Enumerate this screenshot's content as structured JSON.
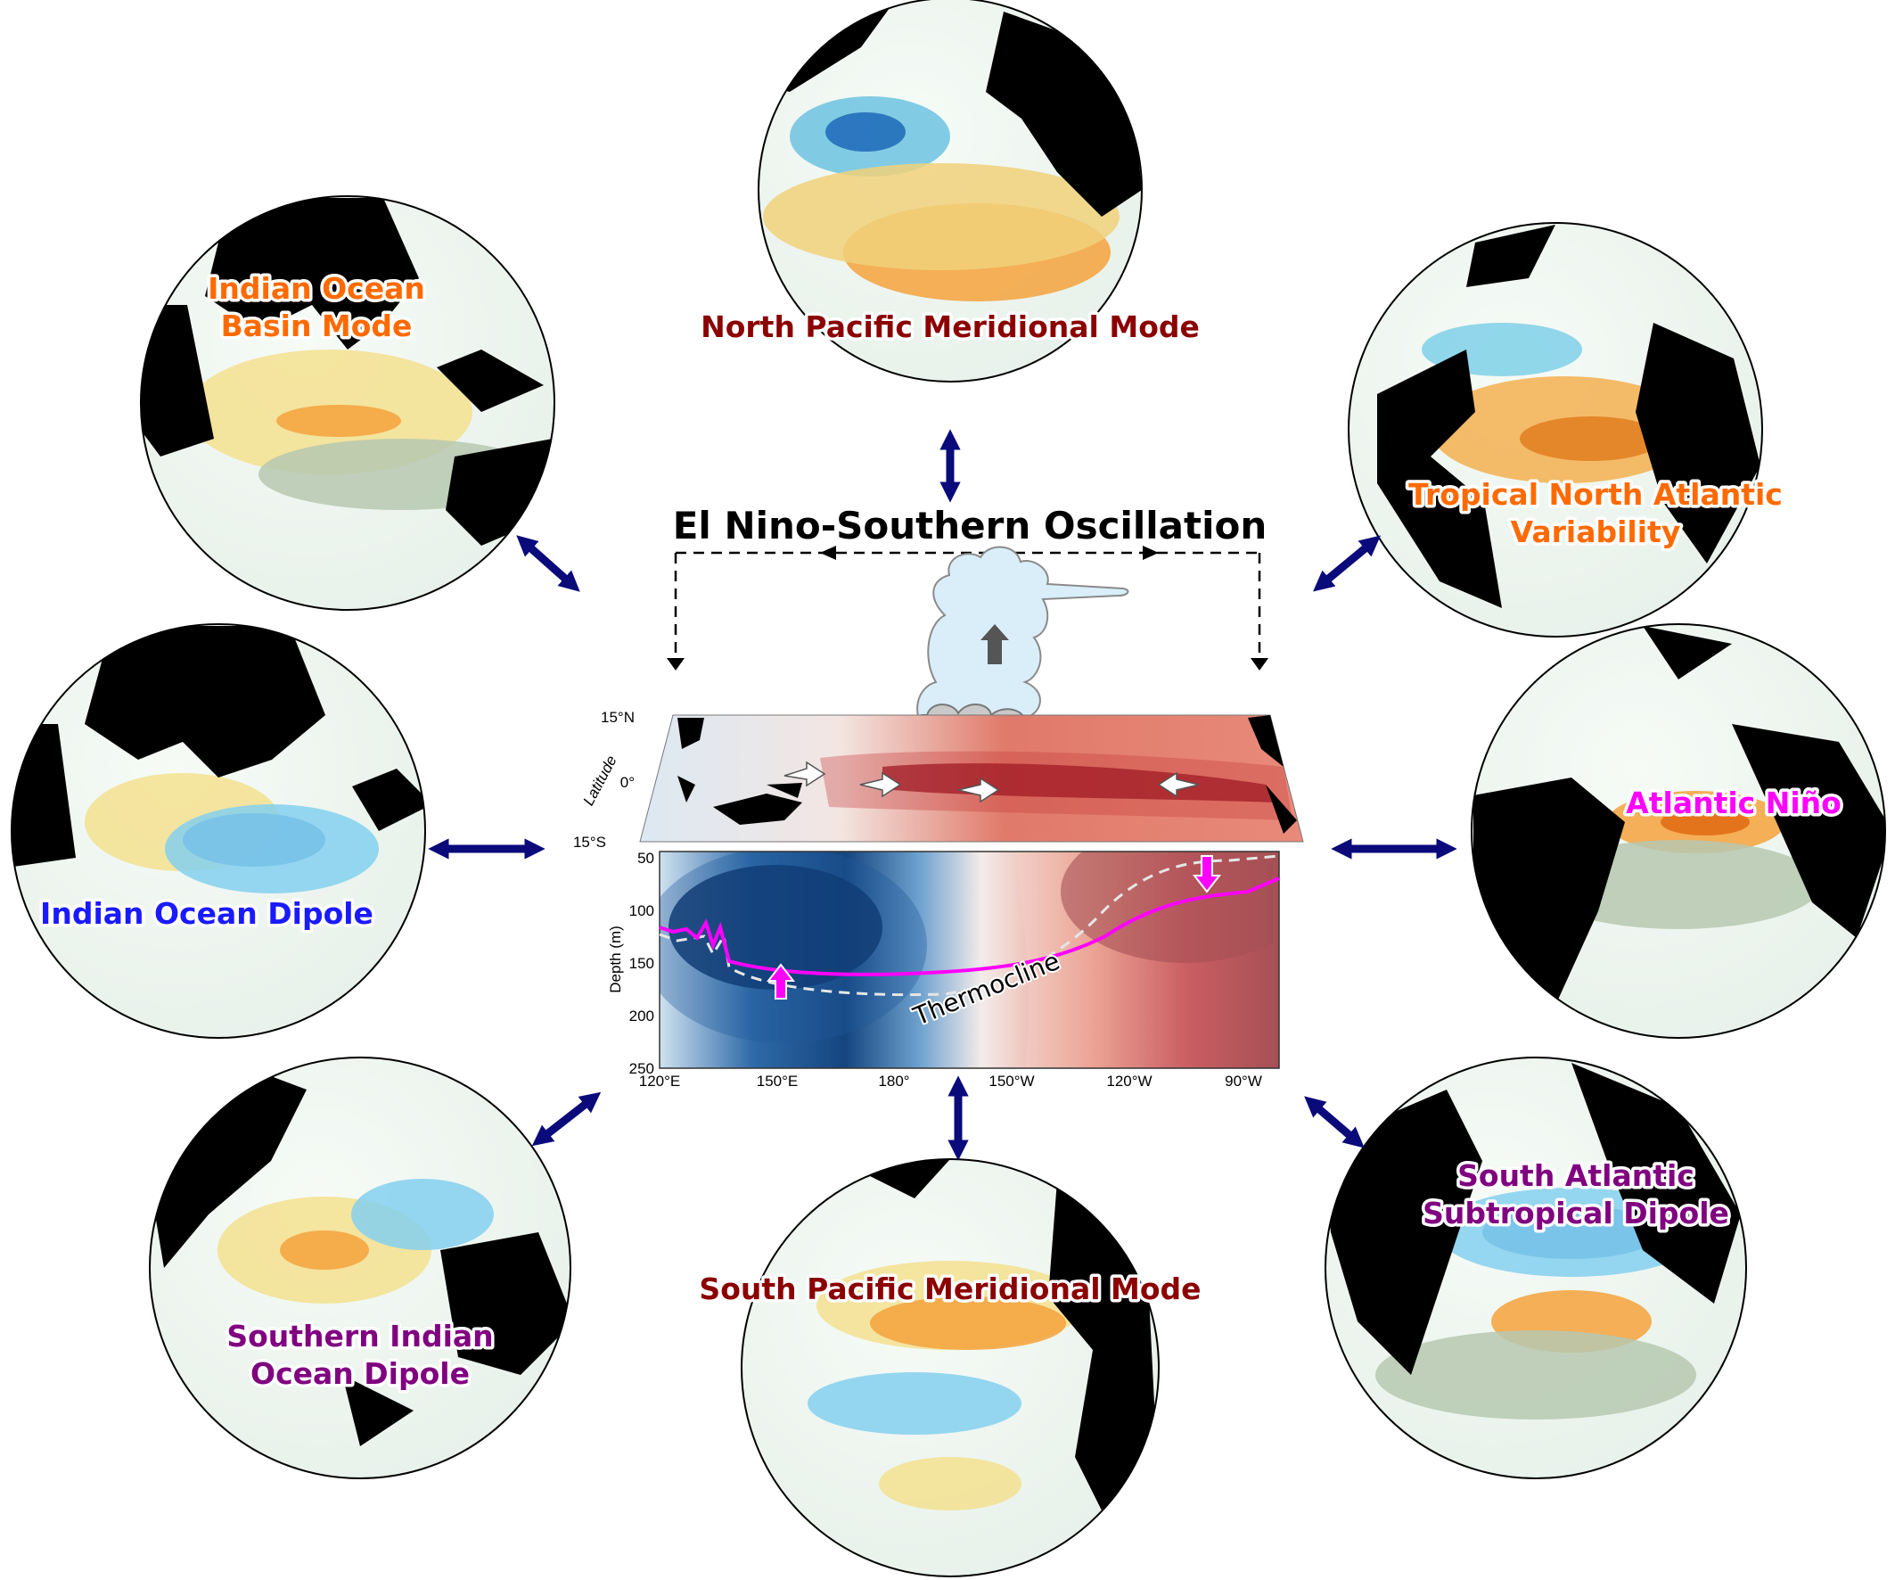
{
  "title": "El Nino-Southern Oscillation",
  "modes": [
    {
      "id": "npmm",
      "label_lines": [
        "North Pacific Meridional Mode"
      ],
      "color": "#8b0000"
    },
    {
      "id": "ioba",
      "label_lines": [
        "Indian Ocean",
        "Basin Mode"
      ],
      "color": "#ff6a00"
    },
    {
      "id": "tna",
      "label_lines": [
        "Tropical North Atlantic",
        "Variability"
      ],
      "color": "#ff6a00"
    },
    {
      "id": "iod",
      "label_lines": [
        "Indian Ocean Dipole"
      ],
      "color": "#1a1aff"
    },
    {
      "id": "atl",
      "label_lines": [
        "Atlantic Niño"
      ],
      "color": "#ff00ff"
    },
    {
      "id": "siod",
      "label_lines": [
        "Southern Indian",
        "Ocean Dipole"
      ],
      "color": "#800080"
    },
    {
      "id": "spmm",
      "label_lines": [
        "South Pacific Meridional Mode"
      ],
      "color": "#8b0000"
    },
    {
      "id": "sasd",
      "label_lines": [
        "South Atlantic",
        "Subtropical Dipole"
      ],
      "color": "#800080"
    }
  ],
  "panel": {
    "lat_axis_label": "Latitude",
    "lat_ticks": [
      "15°N",
      "0°",
      "15°S"
    ],
    "depth_axis_label": "Depth (m)",
    "depth_ticks": [
      "50",
      "100",
      "150",
      "200",
      "250"
    ],
    "lon_ticks": [
      "120°E",
      "150°E",
      "180°",
      "150°W",
      "120°W",
      "90°W"
    ],
    "thermocline_label": "Thermocline"
  },
  "colors": {
    "arrow": "#0a0a7a",
    "thermocline": "#ff00ff",
    "warm": "#8b0a1a",
    "cool": "#0b3d7a",
    "land": "#000000"
  }
}
